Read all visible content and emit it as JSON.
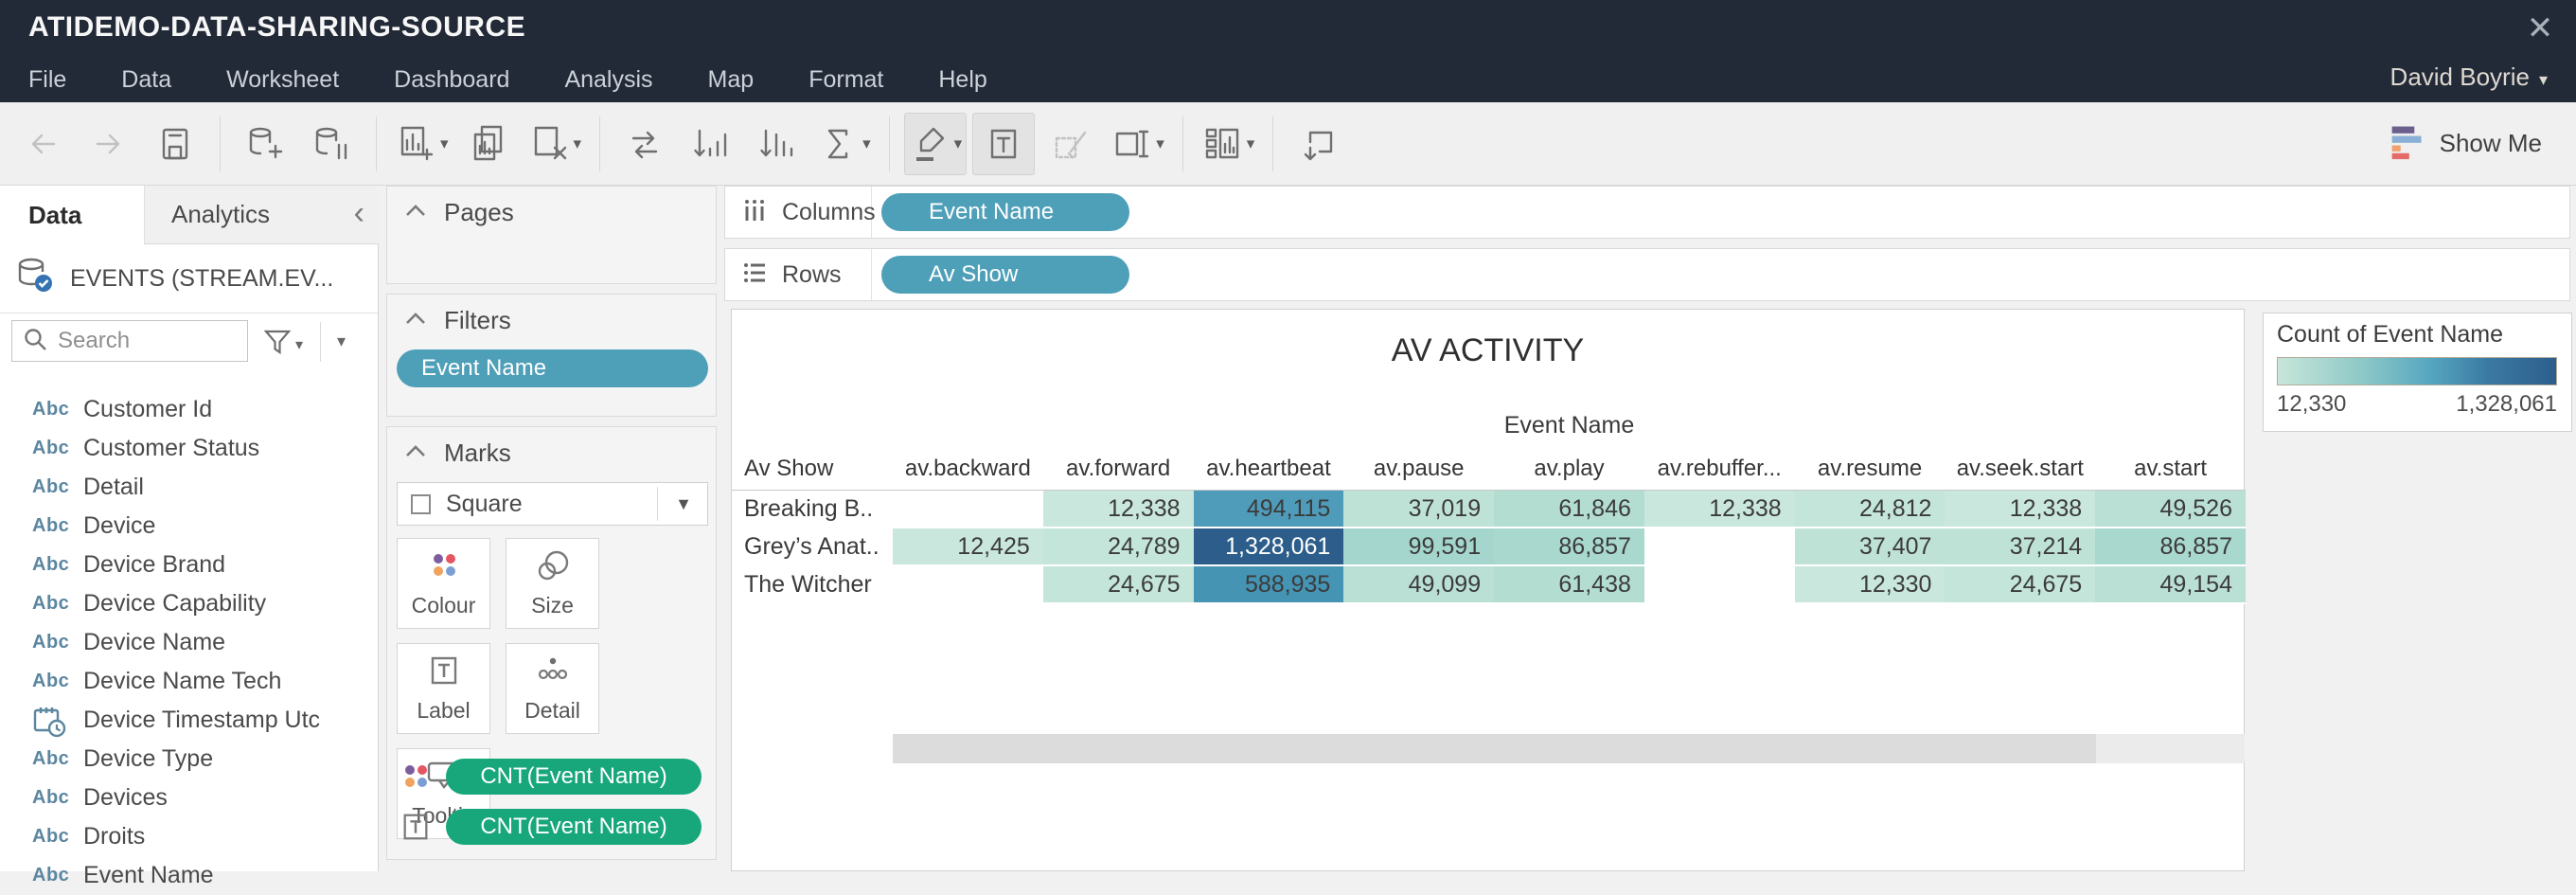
{
  "window": {
    "title": "ATIDEMO-DATA-SHARING-SOURCE",
    "user": "David Boyrie",
    "close_glyph": "✕"
  },
  "menu": {
    "items": [
      "File",
      "Data",
      "Worksheet",
      "Dashboard",
      "Analysis",
      "Map",
      "Format",
      "Help"
    ]
  },
  "toolbar": {
    "show_me_label": "Show Me",
    "items": [
      {
        "icon": "back-arrow",
        "disabled": true
      },
      {
        "icon": "forward-arrow",
        "disabled": true
      },
      {
        "icon": "save"
      },
      {
        "sep": true
      },
      {
        "icon": "new-data-source"
      },
      {
        "icon": "pause-auto-updates"
      },
      {
        "sep": true
      },
      {
        "icon": "new-worksheet",
        "caret": true
      },
      {
        "icon": "duplicate-sheet"
      },
      {
        "icon": "clear-sheet",
        "caret": true
      },
      {
        "sep": true
      },
      {
        "icon": "swap-rows-columns"
      },
      {
        "icon": "sort-ascending"
      },
      {
        "icon": "sort-descending"
      },
      {
        "icon": "totals",
        "caret": true
      },
      {
        "sep": true
      },
      {
        "icon": "highlight",
        "caret": true,
        "active": true
      },
      {
        "icon": "text-label",
        "active": true
      },
      {
        "icon": "format-brush",
        "disabled": true
      },
      {
        "icon": "fix-axes",
        "caret": true
      },
      {
        "sep": true
      },
      {
        "icon": "show-hide-cards",
        "caret": true
      },
      {
        "sep": true
      },
      {
        "icon": "presentation-mode"
      }
    ]
  },
  "data_pane": {
    "tabs": [
      {
        "label": "Data",
        "active": true
      },
      {
        "label": "Analytics",
        "active": false
      }
    ],
    "collapse_glyph": "‹",
    "datasource": "EVENTS (STREAM.EV...",
    "search_placeholder": "Search",
    "fields": [
      {
        "icon": "Abc",
        "name": "Customer Id"
      },
      {
        "icon": "Abc",
        "name": "Customer Status"
      },
      {
        "icon": "Abc",
        "name": "Detail"
      },
      {
        "icon": "Abc",
        "name": "Device"
      },
      {
        "icon": "Abc",
        "name": "Device Brand"
      },
      {
        "icon": "Abc",
        "name": "Device Capability"
      },
      {
        "icon": "Abc",
        "name": "Device Name"
      },
      {
        "icon": "Abc",
        "name": "Device Name Tech"
      },
      {
        "icon": "datetime",
        "name": "Device Timestamp Utc"
      },
      {
        "icon": "Abc",
        "name": "Device Type"
      },
      {
        "icon": "Abc",
        "name": "Devices"
      },
      {
        "icon": "Abc",
        "name": "Droits"
      },
      {
        "icon": "Abc",
        "name": "Event Name",
        "clipped": true
      }
    ]
  },
  "cards": {
    "pages_label": "Pages",
    "filters_label": "Filters",
    "filter_pills": [
      "Event Name"
    ],
    "marks_label": "Marks",
    "mark_type": "Square",
    "mark_buttons": [
      {
        "icon": "colour",
        "label": "Colour"
      },
      {
        "icon": "size",
        "label": "Size"
      },
      {
        "icon": "label",
        "label": "Label"
      },
      {
        "icon": "detail",
        "label": "Detail"
      },
      {
        "icon": "tooltip",
        "label": "Tooltip"
      }
    ],
    "mark_pills": [
      {
        "icon": "colour",
        "label": "CNT(Event Name)"
      },
      {
        "icon": "text",
        "label": "CNT(Event Name)"
      }
    ]
  },
  "shelves": {
    "columns_label": "Columns",
    "columns_pills": [
      "Event Name"
    ],
    "rows_label": "Rows",
    "rows_pills": [
      "Av Show"
    ]
  },
  "view": {
    "title": "AV ACTIVITY",
    "col_group_label": "Event Name",
    "row_header_label": "Av Show",
    "columns": [
      "av.backward",
      "av.forward",
      "av.heartbeat",
      "av.pause",
      "av.play",
      "av.rebuffer...",
      "av.resume",
      "av.seek.start",
      "av.start"
    ],
    "rows": [
      {
        "label": "Breaking B..",
        "cells": [
          null,
          {
            "v": "12,338",
            "c": "#c9e7dc"
          },
          {
            "v": "494,115",
            "c": "#4f9cba"
          },
          {
            "v": "37,019",
            "c": "#bfe2d7"
          },
          {
            "v": "61,846",
            "c": "#b4ddd2"
          },
          {
            "v": "12,338",
            "c": "#c9e7dc"
          },
          {
            "v": "24,812",
            "c": "#c4e5d9"
          },
          {
            "v": "12,338",
            "c": "#c9e7dc"
          },
          {
            "v": "49,526",
            "c": "#badfd5"
          }
        ]
      },
      {
        "label": "Grey’s Anat..",
        "cells": [
          {
            "v": "12,425",
            "c": "#c9e7dc"
          },
          {
            "v": "24,789",
            "c": "#c4e5d9"
          },
          {
            "v": "1,328,061",
            "c": "#2d5e8b",
            "tc": "#ffffff"
          },
          {
            "v": "99,591",
            "c": "#a4d6cd"
          },
          {
            "v": "86,857",
            "c": "#a9d8ce"
          },
          null,
          {
            "v": "37,407",
            "c": "#bfe2d7"
          },
          {
            "v": "37,214",
            "c": "#bfe2d7"
          },
          {
            "v": "86,857",
            "c": "#a9d8ce"
          }
        ]
      },
      {
        "label": "The Witcher",
        "cells": [
          null,
          {
            "v": "24,675",
            "c": "#c4e5d9"
          },
          {
            "v": "588,935",
            "c": "#4594b4"
          },
          {
            "v": "49,099",
            "c": "#badfd5"
          },
          {
            "v": "61,438",
            "c": "#b4ddd2"
          },
          null,
          {
            "v": "12,330",
            "c": "#c9e7dc"
          },
          {
            "v": "24,675",
            "c": "#c4e5d9"
          },
          {
            "v": "49,154",
            "c": "#badfd5"
          }
        ]
      }
    ]
  },
  "legend": {
    "title": "Count of Event Name",
    "min_label": "12,330",
    "max_label": "1,328,061",
    "gradient": [
      "#c8e6da",
      "#8ec9c7",
      "#55a6c0",
      "#3b7ba3",
      "#2d5e8b"
    ]
  },
  "colors": {
    "topbar": "#222a38",
    "dimension_pill": "#4e9fb8",
    "measure_pill": "#17a77b",
    "heat_min": "#c9e7dc",
    "heat_max": "#2d5e8b",
    "field_icon": "#5b86a0"
  },
  "chart_data": {
    "type": "heatmap",
    "title": "AV ACTIVITY",
    "column_group": "Event Name",
    "row_dimension": "Av Show",
    "columns": [
      "av.backward",
      "av.forward",
      "av.heartbeat",
      "av.pause",
      "av.play",
      "av.rebuffer...",
      "av.resume",
      "av.seek.start",
      "av.start"
    ],
    "rows": [
      "Breaking B..",
      "Grey’s Anat..",
      "The Witcher"
    ],
    "values": [
      [
        null,
        12338,
        494115,
        37019,
        61846,
        12338,
        24812,
        12338,
        49526
      ],
      [
        12425,
        24789,
        1328061,
        99591,
        86857,
        null,
        37407,
        37214,
        86857
      ],
      [
        null,
        24675,
        588935,
        49099,
        61438,
        null,
        12330,
        24675,
        49154
      ]
    ],
    "measure": "Count of Event Name",
    "color_range": [
      12330,
      1328061
    ],
    "legend_position": "right"
  }
}
